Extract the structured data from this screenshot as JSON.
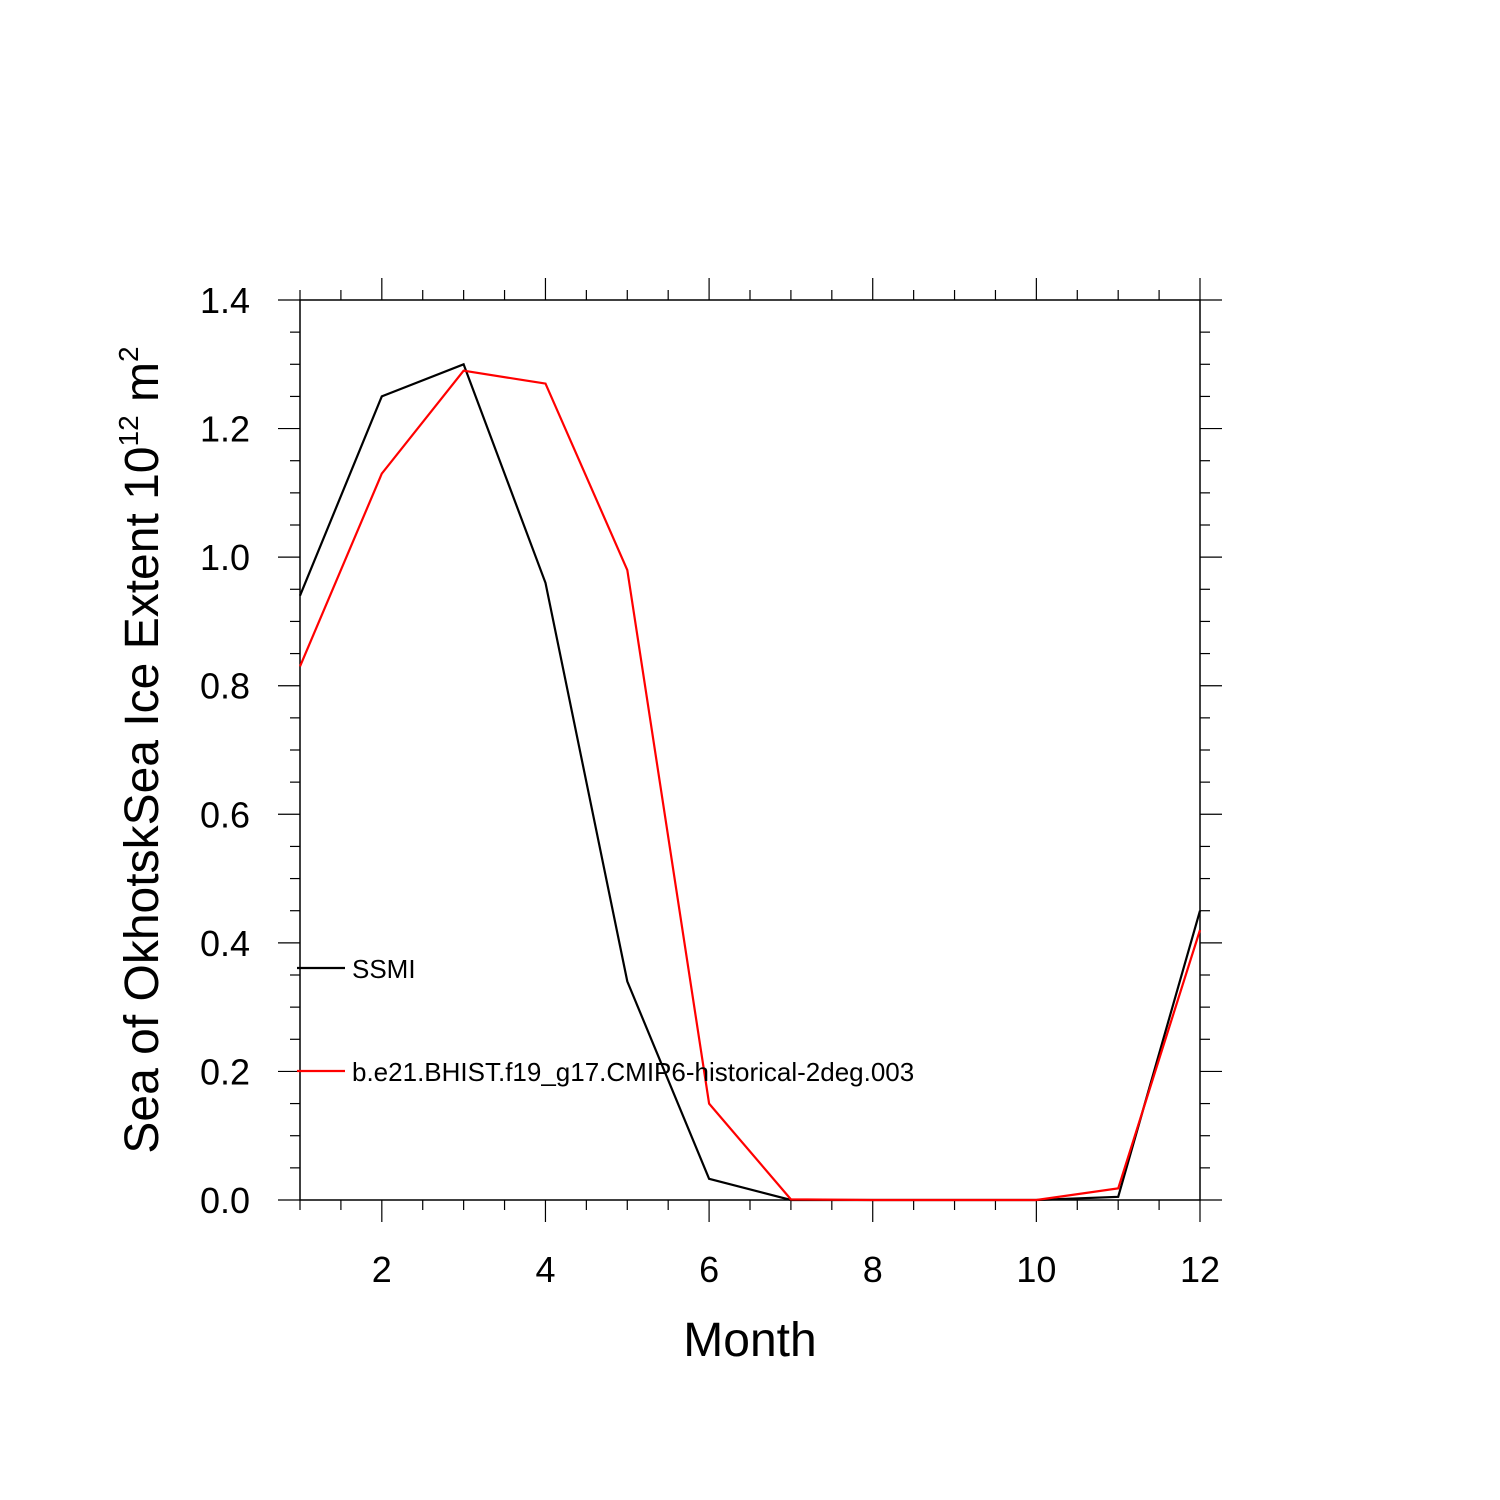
{
  "chart_data": {
    "type": "line",
    "xlabel": "Month",
    "ylabel": "Sea of OkhotskSea Ice Extent 10",
    "ylabel_sup": "12",
    "ylabel_unit": " m",
    "ylabel_unit_sup": "2",
    "xlim": [
      1,
      12
    ],
    "ylim": [
      0.0,
      1.4
    ],
    "x_ticks": [
      2,
      4,
      6,
      8,
      10,
      12
    ],
    "x_tick_labels": [
      "2",
      "4",
      "6",
      "8",
      "10",
      "12"
    ],
    "y_ticks": [
      0.0,
      0.2,
      0.4,
      0.6,
      0.8,
      1.0,
      1.2,
      1.4
    ],
    "y_tick_labels": [
      "0.0",
      "0.2",
      "0.4",
      "0.6",
      "0.8",
      "1.0",
      "1.2",
      "1.4"
    ],
    "x": [
      1,
      2,
      3,
      4,
      5,
      6,
      7,
      8,
      9,
      10,
      11,
      12
    ],
    "series": [
      {
        "name": "SSMI",
        "color": "#000000",
        "values": [
          0.94,
          1.25,
          1.3,
          0.96,
          0.34,
          0.033,
          0.0,
          0.0,
          0.0,
          0.0,
          0.005,
          0.45
        ]
      },
      {
        "name": "b.e21.BHIST.f19_g17.CMIP6-historical-2deg.003",
        "color": "#ff0000",
        "values": [
          0.83,
          1.13,
          1.29,
          1.27,
          0.98,
          0.15,
          0.001,
          0.0,
          0.0,
          0.0,
          0.018,
          0.42
        ]
      }
    ],
    "grid": false,
    "legend_placement": "inside-left"
  }
}
